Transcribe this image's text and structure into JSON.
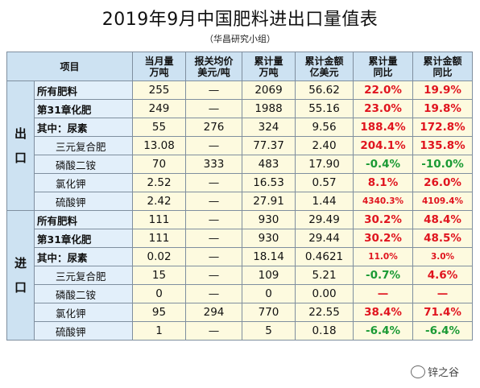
{
  "title": "2019年9月中国肥料进出口量值表",
  "subtitle": "（华昌研究小组）",
  "headers": {
    "item": "项目",
    "monthly_qty": [
      "当月量",
      "万吨"
    ],
    "avg_price": [
      "报关均价",
      "美元/吨"
    ],
    "cum_qty": [
      "累计量",
      "万吨"
    ],
    "cum_value": [
      "累计金额",
      "亿美元"
    ],
    "cum_qty_yoy": [
      "累计量",
      "同比"
    ],
    "cum_value_yoy": [
      "累计金额",
      "同比"
    ]
  },
  "sections": [
    {
      "label": "出口",
      "rows": [
        {
          "name": "所有肥料",
          "monthly": "255",
          "price": "—",
          "cum": "2069",
          "value": "56.62",
          "qty_yoy": "22.0%",
          "val_yoy": "19.9%"
        },
        {
          "name": "第31章化肥",
          "monthly": "249",
          "price": "—",
          "cum": "1988",
          "value": "55.16",
          "qty_yoy": "23.0%",
          "val_yoy": "19.8%"
        },
        {
          "name": "其中：尿素",
          "monthly": "55",
          "price": "276",
          "cum": "324",
          "value": "9.56",
          "qty_yoy": "188.4%",
          "val_yoy": "172.8%"
        },
        {
          "name": "三元复合肥",
          "monthly": "13.08",
          "price": "—",
          "cum": "77.37",
          "value": "2.40",
          "qty_yoy": "204.1%",
          "val_yoy": "135.8%"
        },
        {
          "name": "磷酸二铵",
          "monthly": "70",
          "price": "333",
          "cum": "483",
          "value": "17.90",
          "qty_yoy": "-0.4%",
          "val_yoy": "-10.0%"
        },
        {
          "name": "氯化钾",
          "monthly": "2.52",
          "price": "—",
          "cum": "16.53",
          "value": "0.57",
          "qty_yoy": "8.1%",
          "val_yoy": "26.0%"
        },
        {
          "name": "硫酸钾",
          "monthly": "2.42",
          "price": "—",
          "cum": "27.91",
          "value": "1.44",
          "qty_yoy": "4340.3%",
          "val_yoy": "4109.4%"
        }
      ]
    },
    {
      "label": "进口",
      "rows": [
        {
          "name": "所有肥料",
          "monthly": "111",
          "price": "—",
          "cum": "930",
          "value": "29.49",
          "qty_yoy": "30.2%",
          "val_yoy": "48.4%"
        },
        {
          "name": "第31章化肥",
          "monthly": "111",
          "price": "—",
          "cum": "930",
          "value": "29.44",
          "qty_yoy": "30.2%",
          "val_yoy": "48.5%"
        },
        {
          "name": "其中：尿素",
          "monthly": "0.02",
          "price": "—",
          "cum": "18.14",
          "value": "0.4621",
          "qty_yoy": "11.0%",
          "val_yoy": "3.0%"
        },
        {
          "name": "三元复合肥",
          "monthly": "15",
          "price": "—",
          "cum": "109",
          "value": "5.21",
          "qty_yoy": "-0.7%",
          "val_yoy": "4.6%"
        },
        {
          "name": "磷酸二铵",
          "monthly": "0",
          "price": "—",
          "cum": "0",
          "value": "0.00",
          "qty_yoy": "—",
          "val_yoy": "—"
        },
        {
          "name": "氯化钾",
          "monthly": "95",
          "price": "294",
          "cum": "770",
          "value": "22.55",
          "qty_yoy": "38.4%",
          "val_yoy": "71.4%"
        },
        {
          "name": "硫酸钾",
          "monthly": "1",
          "price": "—",
          "cum": "5",
          "value": "0.18",
          "qty_yoy": "-6.4%",
          "val_yoy": "-6.4%"
        }
      ]
    }
  ],
  "watermark": "锌之谷",
  "colors": {
    "positive": "#e0141e",
    "negative": "#1a9a34",
    "header_bg": "#cde2f2",
    "name_bg": "#e2effa",
    "value_bg": "#fdfadf"
  }
}
